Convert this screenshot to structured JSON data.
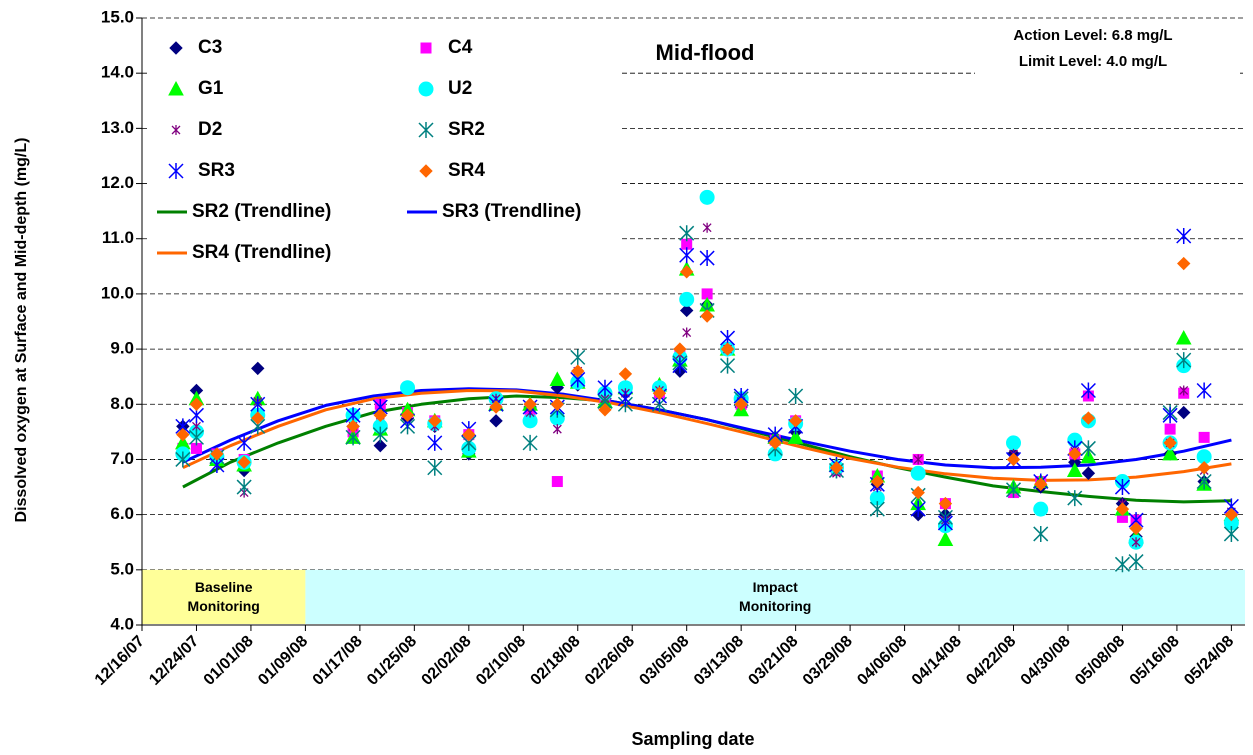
{
  "chart_data": {
    "type": "scatter",
    "x_label": "Sampling date",
    "y_label": "Dissolved oxygen at Surface and Mid-depth (mg/L)",
    "annotations": [
      "Mid-flood",
      "Action Level: 6.8 mg/L",
      "Limit Level: 4.0 mg/L"
    ],
    "xlim": [
      "12/16/07",
      "05/26/08"
    ],
    "xticks": [
      "12/16/07",
      "12/24/07",
      "01/01/08",
      "01/09/08",
      "01/17/08",
      "01/25/08",
      "02/02/08",
      "02/10/08",
      "02/18/08",
      "02/26/08",
      "03/05/08",
      "03/13/08",
      "03/21/08",
      "03/29/08",
      "04/06/08",
      "04/14/08",
      "04/22/08",
      "04/30/08",
      "05/08/08",
      "05/16/08",
      "05/24/08"
    ],
    "ylim": [
      4.0,
      15.0
    ],
    "yticks": [
      {
        "value": 4,
        "label": "4.0"
      },
      {
        "value": 5,
        "label": "5.0"
      },
      {
        "value": 6,
        "label": "6.0"
      },
      {
        "value": 7,
        "label": "7.0"
      },
      {
        "value": 8,
        "label": "8.0"
      },
      {
        "value": 9,
        "label": "9.0"
      },
      {
        "value": 10,
        "label": "10.0"
      },
      {
        "value": 11,
        "label": "11.0"
      },
      {
        "value": 12,
        "label": "12.0"
      },
      {
        "value": 13,
        "label": "13.0"
      },
      {
        "value": 14,
        "label": "14.0"
      },
      {
        "value": 15,
        "label": "15.0"
      }
    ],
    "grid": true,
    "bands": [
      {
        "label": "Baseline Monitoring",
        "start": "12/16/07",
        "end": "01/09/08",
        "yrange": [
          4.0,
          5.0
        ],
        "color": "#ffff99"
      },
      {
        "label": "Impact Monitoring",
        "start": "01/09/08",
        "end": "05/26/08",
        "yrange": [
          4.0,
          5.0
        ],
        "color": "#ccffff"
      }
    ],
    "x": [
      "12/22/07",
      "12/24/07",
      "12/27/07",
      "12/31/07",
      "01/02/08",
      "01/16/08",
      "01/20/08",
      "01/24/08",
      "01/28/08",
      "02/02/08",
      "02/06/08",
      "02/11/08",
      "02/15/08",
      "02/18/08",
      "02/22/08",
      "02/25/08",
      "03/01/08",
      "03/04/08",
      "03/05/08",
      "03/08/08",
      "03/11/08",
      "03/13/08",
      "03/18/08",
      "03/21/08",
      "03/27/08",
      "04/02/08",
      "04/08/08",
      "04/12/08",
      "04/22/08",
      "04/26/08",
      "05/01/08",
      "05/03/08",
      "05/08/08",
      "05/10/08",
      "05/15/08",
      "05/17/08",
      "05/20/08",
      "05/24/08"
    ],
    "series": [
      {
        "name": "C3",
        "color": "#000080",
        "marker": "diamond",
        "values": [
          7.6,
          8.25,
          7.0,
          6.8,
          8.65,
          7.6,
          7.25,
          7.75,
          7.6,
          7.1,
          7.7,
          7.95,
          8.3,
          8.35,
          8.1,
          8.2,
          8.3,
          8.6,
          9.7,
          9.8,
          9.0,
          7.95,
          7.4,
          7.5,
          6.85,
          6.55,
          6.0,
          6.0,
          7.1,
          6.5,
          6.95,
          6.75,
          6.2,
          5.6,
          7.1,
          7.85,
          6.6,
          6.0
        ]
      },
      {
        "name": "C4",
        "color": "#ff00ff",
        "marker": "square",
        "values": [
          7.2,
          7.2,
          7.1,
          7.0,
          7.8,
          7.5,
          8.0,
          7.85,
          7.7,
          7.45,
          8.0,
          7.8,
          6.6,
          8.4,
          8.1,
          8.3,
          8.2,
          8.9,
          10.9,
          10.0,
          9.0,
          8.0,
          7.35,
          7.7,
          6.8,
          6.7,
          7.0,
          6.2,
          6.4,
          6.6,
          7.1,
          8.15,
          5.95,
          5.9,
          7.55,
          8.2,
          7.4,
          5.95
        ]
      },
      {
        "name": "G1",
        "color": "#00ff00",
        "marker": "triangle",
        "values": [
          7.3,
          8.1,
          7.0,
          6.9,
          8.1,
          7.4,
          7.55,
          7.9,
          7.7,
          7.15,
          8.0,
          8.0,
          8.45,
          8.4,
          8.05,
          8.3,
          8.35,
          8.8,
          10.45,
          9.8,
          9.0,
          7.9,
          7.4,
          7.4,
          6.9,
          6.7,
          6.2,
          5.55,
          6.5,
          6.6,
          6.8,
          7.05,
          6.1,
          5.6,
          7.1,
          9.2,
          6.55,
          6.0
        ]
      },
      {
        "name": "U2",
        "color": "#00ffff",
        "marker": "circle",
        "values": [
          7.1,
          7.5,
          7.05,
          6.95,
          7.8,
          7.8,
          7.6,
          8.3,
          7.65,
          7.2,
          8.1,
          7.7,
          7.75,
          8.4,
          8.2,
          8.3,
          8.3,
          8.85,
          9.9,
          11.75,
          9.0,
          8.1,
          7.1,
          7.65,
          6.85,
          6.3,
          6.75,
          5.8,
          7.3,
          6.1,
          7.35,
          7.7,
          6.6,
          5.5,
          7.3,
          8.7,
          7.05,
          5.85
        ]
      },
      {
        "name": "D2",
        "color": "#800080",
        "marker": "asterisk",
        "values": [
          7.0,
          7.6,
          6.9,
          6.4,
          8.05,
          7.6,
          7.8,
          7.7,
          7.6,
          7.3,
          8.1,
          7.85,
          7.55,
          8.6,
          8.1,
          8.2,
          8.25,
          8.9,
          9.3,
          11.2,
          9.0,
          8.05,
          7.45,
          7.6,
          6.75,
          6.5,
          7.0,
          5.9,
          7.1,
          6.6,
          7.15,
          7.2,
          6.2,
          5.5,
          7.3,
          8.25,
          6.8,
          6.05
        ]
      },
      {
        "name": "SR2",
        "color": "#008080",
        "marker": "star",
        "values": [
          7.0,
          7.4,
          7.05,
          6.5,
          7.6,
          7.4,
          7.45,
          7.6,
          6.85,
          7.3,
          8.0,
          7.3,
          7.9,
          8.85,
          8.05,
          8.0,
          8.0,
          8.75,
          11.1,
          9.7,
          8.7,
          8.1,
          7.2,
          8.15,
          6.8,
          6.1,
          6.35,
          5.95,
          6.45,
          5.65,
          6.3,
          7.2,
          5.1,
          5.15,
          7.85,
          8.8,
          6.6,
          5.65
        ]
      },
      {
        "name": "SR3",
        "color": "#0000ff",
        "marker": "star",
        "values": [
          7.6,
          7.8,
          6.9,
          7.3,
          8.0,
          7.8,
          7.95,
          7.7,
          7.3,
          7.55,
          8.0,
          7.95,
          7.95,
          8.45,
          8.3,
          8.1,
          8.15,
          8.7,
          10.7,
          10.65,
          9.2,
          8.15,
          7.45,
          7.6,
          6.9,
          6.55,
          6.1,
          5.85,
          7.0,
          6.6,
          7.2,
          8.25,
          6.5,
          5.9,
          7.8,
          11.05,
          8.25,
          6.15
        ]
      },
      {
        "name": "SR4",
        "color": "#ff6600",
        "marker": "diamond",
        "values": [
          7.45,
          8.0,
          7.1,
          6.95,
          7.75,
          7.6,
          7.8,
          7.8,
          7.7,
          7.45,
          7.95,
          8.0,
          8.0,
          8.6,
          7.9,
          8.55,
          8.2,
          9.0,
          10.4,
          9.6,
          9.0,
          8.0,
          7.3,
          7.7,
          6.85,
          6.6,
          6.4,
          6.2,
          7.0,
          6.55,
          7.1,
          7.75,
          6.1,
          5.75,
          7.3,
          10.55,
          6.85,
          6.0
        ]
      }
    ],
    "trendlines": [
      {
        "name": "SR2 (Trendline)",
        "color": "#008000",
        "x": [
          "12/22/07",
          "12/29/07",
          "01/05/08",
          "01/12/08",
          "01/19/08",
          "01/26/08",
          "02/02/08",
          "02/09/08",
          "02/16/08",
          "02/23/08",
          "03/01/08",
          "03/08/08",
          "03/15/08",
          "03/22/08",
          "03/29/08",
          "04/05/08",
          "04/12/08",
          "04/19/08",
          "04/26/08",
          "05/03/08",
          "05/10/08",
          "05/17/08",
          "05/24/08"
        ],
        "values": [
          6.5,
          6.95,
          7.3,
          7.6,
          7.85,
          8.0,
          8.1,
          8.15,
          8.12,
          8.05,
          7.9,
          7.72,
          7.5,
          7.28,
          7.05,
          6.85,
          6.68,
          6.52,
          6.42,
          6.33,
          6.26,
          6.23,
          6.25
        ]
      },
      {
        "name": "SR3 (Trendline)",
        "color": "#0000ff",
        "x": [
          "12/22/07",
          "12/29/07",
          "01/05/08",
          "01/12/08",
          "01/19/08",
          "01/26/08",
          "02/02/08",
          "02/09/08",
          "02/16/08",
          "02/23/08",
          "03/01/08",
          "03/08/08",
          "03/15/08",
          "03/22/08",
          "03/29/08",
          "04/05/08",
          "04/12/08",
          "04/19/08",
          "04/26/08",
          "05/03/08",
          "05/10/08",
          "05/17/08",
          "05/24/08"
        ],
        "values": [
          6.95,
          7.35,
          7.7,
          7.98,
          8.15,
          8.25,
          8.28,
          8.26,
          8.18,
          8.05,
          7.9,
          7.72,
          7.52,
          7.33,
          7.15,
          7.0,
          6.9,
          6.85,
          6.86,
          6.9,
          7.0,
          7.15,
          7.35
        ]
      },
      {
        "name": "SR4 (Trendline)",
        "color": "#ff6600",
        "x": [
          "12/22/07",
          "12/29/07",
          "01/05/08",
          "01/12/08",
          "01/19/08",
          "01/26/08",
          "02/02/08",
          "02/09/08",
          "02/16/08",
          "02/23/08",
          "03/01/08",
          "03/08/08",
          "03/15/08",
          "03/22/08",
          "03/29/08",
          "04/05/08",
          "04/12/08",
          "04/19/08",
          "04/26/08",
          "05/03/08",
          "05/10/08",
          "05/17/08",
          "05/24/08"
        ],
        "values": [
          6.85,
          7.25,
          7.6,
          7.9,
          8.1,
          8.2,
          8.25,
          8.24,
          8.15,
          8.02,
          7.85,
          7.65,
          7.44,
          7.22,
          7.02,
          6.86,
          6.74,
          6.66,
          6.62,
          6.63,
          6.68,
          6.78,
          6.92
        ]
      }
    ]
  }
}
